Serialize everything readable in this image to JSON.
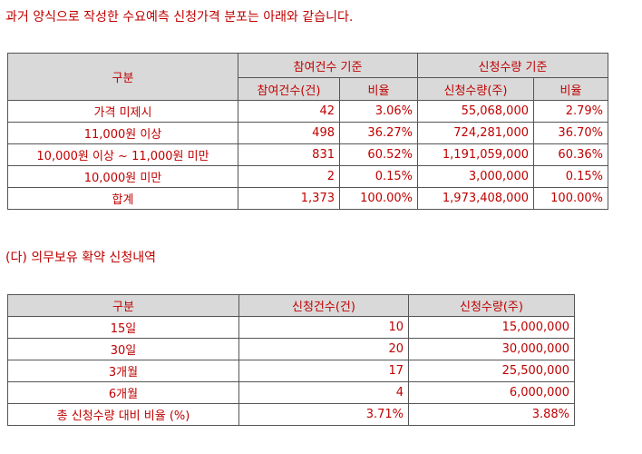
{
  "heading1": "과거 양식으로 작성한 수요예측 신청가격 분포는 아래와 같습니다.",
  "table1": {
    "col_category": "구분",
    "group1": "참여건수 기준",
    "group2": "신청수량 기준",
    "sub1": "참여건수(건)",
    "sub2": "비율",
    "sub3": "신청수량(주)",
    "sub4": "비율",
    "rows": [
      {
        "label": "가격 미제시",
        "count": "42",
        "count_ratio": "3.06%",
        "qty": "55,068,000",
        "qty_ratio": "2.79%"
      },
      {
        "label": "11,000원 이상",
        "count": "498",
        "count_ratio": "36.27%",
        "qty": "724,281,000",
        "qty_ratio": "36.70%"
      },
      {
        "label": "10,000원 이상 ~ 11,000원 미만",
        "count": "831",
        "count_ratio": "60.52%",
        "qty": "1,191,059,000",
        "qty_ratio": "60.36%"
      },
      {
        "label": "10,000원 미만",
        "count": "2",
        "count_ratio": "0.15%",
        "qty": "3,000,000",
        "qty_ratio": "0.15%"
      },
      {
        "label": "합계",
        "count": "1,373",
        "count_ratio": "100.00%",
        "qty": "1,973,408,000",
        "qty_ratio": "100.00%"
      }
    ]
  },
  "heading2": "(다) 의무보유 확약 신청내역",
  "table2": {
    "col_category": "구분",
    "col_count": "신청건수(건)",
    "col_qty": "신청수량(주)",
    "rows": [
      {
        "label": "15일",
        "count": "10",
        "qty": "15,000,000"
      },
      {
        "label": "30일",
        "count": "20",
        "qty": "30,000,000"
      },
      {
        "label": "3개월",
        "count": "17",
        "qty": "25,500,000"
      },
      {
        "label": "6개월",
        "count": "4",
        "qty": "6,000,000"
      },
      {
        "label": "총 신청수량 대비 비율 (%)",
        "count": "3.71%",
        "qty": "3.88%"
      }
    ]
  }
}
